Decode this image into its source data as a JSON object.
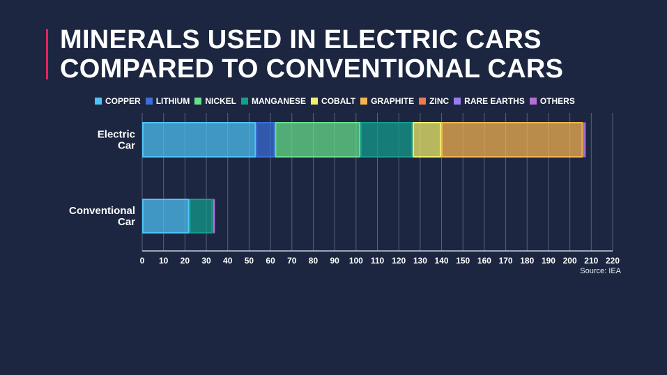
{
  "title": {
    "line1": "MINERALS USED IN ELECTRIC CARS",
    "line2": "COMPARED TO CONVENTIONAL CARS"
  },
  "source": "Source: IEA",
  "colors": {
    "background": "#1c2640",
    "accent": "#e0245e"
  },
  "chart_data": {
    "type": "bar",
    "orientation": "horizontal",
    "stacked": true,
    "title": "MINERALS USED IN ELECTRIC CARS COMPARED TO CONVENTIONAL CARS",
    "categories": [
      [
        "Electric",
        "Car"
      ],
      [
        "Conventional",
        "Car"
      ]
    ],
    "xlim": [
      0,
      220
    ],
    "xticks": [
      0,
      10,
      20,
      30,
      40,
      50,
      60,
      70,
      80,
      90,
      100,
      110,
      120,
      130,
      140,
      150,
      160,
      170,
      180,
      190,
      200,
      210,
      220
    ],
    "grid": true,
    "legend_position": "top",
    "series": [
      {
        "name": "COPPER",
        "color": "#4fc3f7",
        "values": [
          53.2,
          22
        ]
      },
      {
        "name": "LITHIUM",
        "color": "#3a6fd8",
        "values": [
          8.9,
          0
        ]
      },
      {
        "name": "NICKEL",
        "color": "#66e08a",
        "values": [
          39.9,
          0
        ]
      },
      {
        "name": "MANGANESE",
        "color": "#139e8e",
        "values": [
          24.5,
          11
        ]
      },
      {
        "name": "COBALT",
        "color": "#f2f06a",
        "values": [
          13.3,
          0
        ]
      },
      {
        "name": "GRAPHITE",
        "color": "#f7b450",
        "values": [
          66.3,
          0
        ]
      },
      {
        "name": "ZINC",
        "color": "#f07a4e",
        "values": [
          0.1,
          0.3
        ]
      },
      {
        "name": "RARE EARTHS",
        "color": "#9b7cf0",
        "values": [
          0.5,
          0
        ]
      },
      {
        "name": "OTHERS",
        "color": "#b66fd6",
        "values": [
          0.3,
          0.3
        ]
      }
    ],
    "source": "Source: IEA"
  }
}
